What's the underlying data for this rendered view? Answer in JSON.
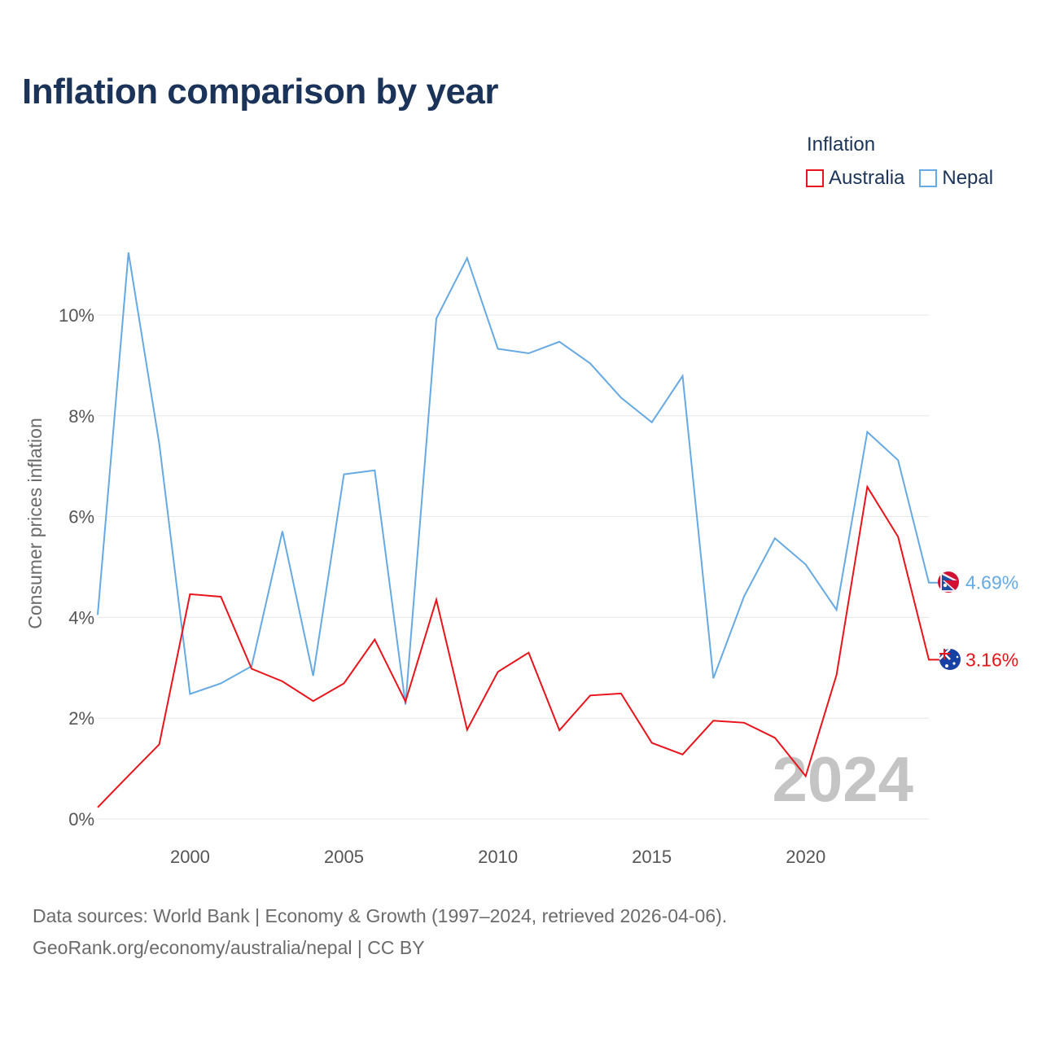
{
  "header": {
    "title": "Inflation comparison by year"
  },
  "legend": {
    "title": "Inflation",
    "items": [
      {
        "label": "Australia",
        "color": "#e8141b"
      },
      {
        "label": "Nepal",
        "color": "#66a9e3"
      }
    ]
  },
  "footer": {
    "sources_line": "Data sources: World Bank | Economy & Growth (1997–2024, retrieved 2026-04-06).",
    "credit_line": "GeoRank.org/economy/australia/nepal | CC BY"
  },
  "chart_data": {
    "type": "line",
    "title": "Inflation comparison by year",
    "xlabel": "",
    "ylabel": "Consumer prices inflation",
    "x": [
      1997,
      1998,
      1999,
      2000,
      2001,
      2002,
      2003,
      2004,
      2005,
      2006,
      2007,
      2008,
      2009,
      2010,
      2011,
      2012,
      2013,
      2014,
      2015,
      2016,
      2017,
      2018,
      2019,
      2020,
      2021,
      2022,
      2023,
      2024
    ],
    "xlim": [
      1997,
      2024
    ],
    "ylim": [
      0,
      12
    ],
    "xticks": [
      {
        "value": 2000,
        "label": "2000"
      },
      {
        "value": 2005,
        "label": "2005"
      },
      {
        "value": 2010,
        "label": "2010"
      },
      {
        "value": 2015,
        "label": "2015"
      },
      {
        "value": 2020,
        "label": "2020"
      }
    ],
    "yticks": [
      {
        "value": 0,
        "label": "0%"
      },
      {
        "value": 2,
        "label": "2%"
      },
      {
        "value": 4,
        "label": "4%"
      },
      {
        "value": 6,
        "label": "6%"
      },
      {
        "value": 8,
        "label": "8%"
      },
      {
        "value": 10,
        "label": "10%"
      }
    ],
    "grid": true,
    "legend_position": "top-right",
    "year_watermark": "2024",
    "series": [
      {
        "name": "Nepal",
        "color": "#66a9e3",
        "values": [
          4.05,
          11.24,
          7.45,
          2.48,
          2.69,
          3.03,
          5.71,
          2.84,
          6.84,
          6.92,
          2.27,
          9.93,
          11.13,
          9.33,
          9.24,
          9.47,
          9.04,
          8.36,
          7.87,
          8.79,
          2.79,
          4.42,
          5.57,
          5.05,
          4.15,
          7.68,
          7.12,
          4.69
        ],
        "end_label": "4.69%"
      },
      {
        "name": "Australia",
        "color": "#e8141b",
        "values": [
          0.23,
          0.86,
          1.48,
          4.46,
          4.41,
          2.98,
          2.73,
          2.34,
          2.69,
          3.56,
          2.33,
          4.35,
          1.77,
          2.92,
          3.3,
          1.76,
          2.45,
          2.49,
          1.51,
          1.28,
          1.95,
          1.91,
          1.61,
          0.85,
          2.86,
          6.59,
          5.6,
          3.16
        ],
        "end_label": "3.16%"
      }
    ]
  }
}
